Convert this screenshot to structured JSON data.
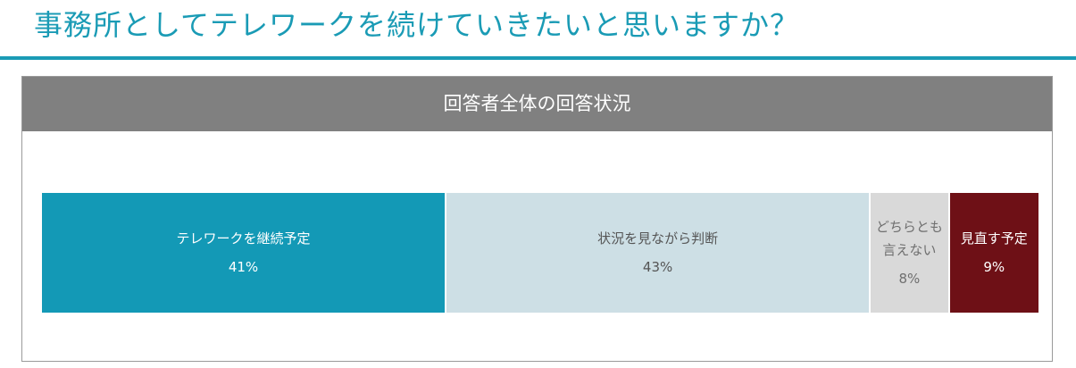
{
  "page": {
    "title": "事務所としてテレワークを続けていきたいと思いますか？"
  },
  "colors": {
    "accent": "#1a9bb5",
    "header_bg": "#808080"
  },
  "chart_data": {
    "type": "bar",
    "orientation": "horizontal-stacked-100",
    "title": "回答者全体の回答状況",
    "categories": [
      "テレワークを継続予定",
      "状況を見ながら判断",
      "どちらとも言えない",
      "見直す予定"
    ],
    "values": [
      41,
      43,
      8,
      9
    ],
    "value_labels": [
      "41%",
      "43%",
      "8%",
      "9%"
    ],
    "display_labels": [
      "テレワークを継続予定",
      "状況を見ながら判断",
      "どちらとも\n言えない",
      "見直す予定"
    ],
    "colors": [
      "#1399b6",
      "#cddfe5",
      "#d9d9d9",
      "#6e1016"
    ],
    "text_colors": [
      "#ffffff",
      "#555555",
      "#6f6f6f",
      "#ffffff"
    ],
    "legend": "none",
    "grid": false
  }
}
